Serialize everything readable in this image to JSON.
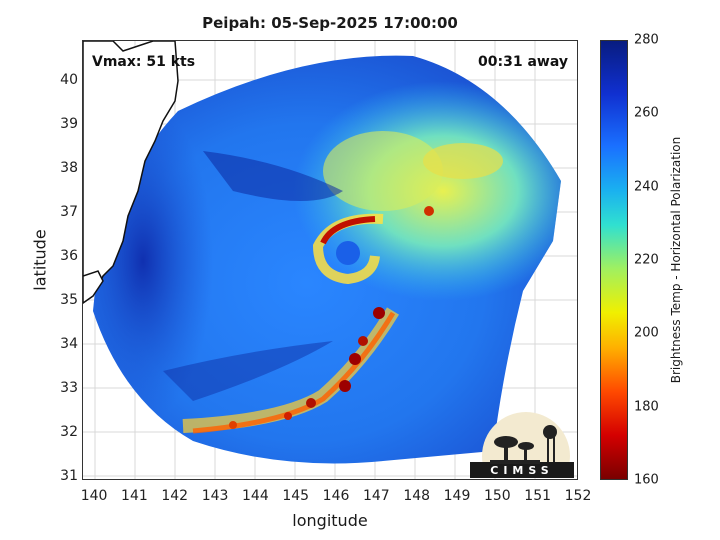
{
  "title": "Peipah: 05-Sep-2025 17:00:00",
  "overlay": {
    "vmax": "Vmax: 51 kts",
    "away": "00:31 away"
  },
  "axes": {
    "xlabel": "longitude",
    "ylabel": "latitude",
    "xticks": [
      "140",
      "141",
      "142",
      "143",
      "144",
      "145",
      "146",
      "147",
      "148",
      "149",
      "150",
      "151",
      "152"
    ],
    "yticks": [
      "40",
      "39",
      "38",
      "37",
      "36",
      "35",
      "34",
      "33",
      "32",
      "31"
    ],
    "xlim": [
      139.7,
      152.0
    ],
    "ylim": [
      30.9,
      40.9
    ]
  },
  "colorbar": {
    "label": "Brightness Temp - Horizontal Polarization",
    "ticks": [
      "280",
      "260",
      "240",
      "220",
      "200",
      "180",
      "160"
    ],
    "range": [
      160,
      280
    ]
  },
  "logo": {
    "text": "CIMSS"
  },
  "storm_center": {
    "lon": 146.2,
    "lat": 36.2
  }
}
